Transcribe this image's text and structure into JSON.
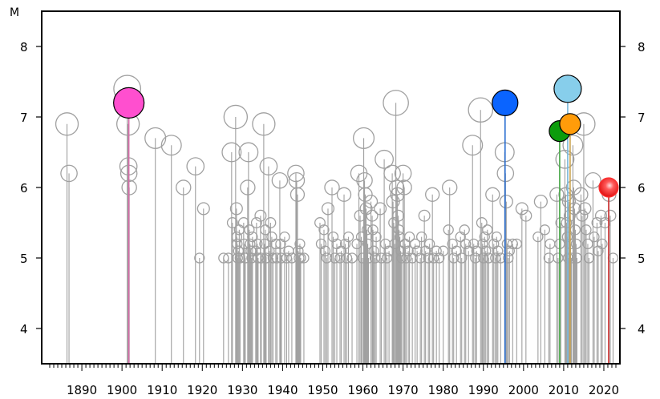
{
  "chart_data": {
    "type": "scatter",
    "title": "",
    "ylabel": "M",
    "xlabel": "",
    "xlim": [
      1880,
      2024
    ],
    "ylim": [
      3.5,
      8.5
    ],
    "xticks": [
      "1890",
      "1900",
      "1910",
      "1920",
      "1930",
      "1940",
      "1950",
      "1960",
      "1970",
      "1980",
      "1990",
      "2000",
      "2010",
      "2020"
    ],
    "yticks": [
      "4",
      "5",
      "6",
      "7",
      "8"
    ],
    "grid": false,
    "background_events": {
      "color": "#a0a0a0",
      "points": [
        [
          1886.3,
          6.9
        ],
        [
          1886.8,
          6.2
        ],
        [
          1901.3,
          7.4
        ],
        [
          1901.5,
          6.9
        ],
        [
          1901.6,
          6.3
        ],
        [
          1901.7,
          6.2
        ],
        [
          1901.8,
          6.0
        ],
        [
          1908.3,
          6.7
        ],
        [
          1912.3,
          6.6
        ],
        [
          1915.3,
          6.0
        ],
        [
          1918.3,
          6.3
        ],
        [
          1919.3,
          5.0
        ],
        [
          1920.3,
          5.7
        ],
        [
          1925.3,
          5.0
        ],
        [
          1926.5,
          5.0
        ],
        [
          1927.3,
          6.5
        ],
        [
          1927.5,
          5.5
        ],
        [
          1928.3,
          7.0
        ],
        [
          1928.5,
          5.7
        ],
        [
          1928.6,
          5.3
        ],
        [
          1928.7,
          5.2
        ],
        [
          1928.8,
          5.0
        ],
        [
          1929.0,
          5.1
        ],
        [
          1929.2,
          5.4
        ],
        [
          1929.4,
          5.0
        ],
        [
          1930.3,
          5.5
        ],
        [
          1930.5,
          5.2
        ],
        [
          1930.7,
          5.0
        ],
        [
          1931.3,
          6.0
        ],
        [
          1931.5,
          6.5
        ],
        [
          1931.7,
          5.4
        ],
        [
          1931.9,
          5.2
        ],
        [
          1932.1,
          5.1
        ],
        [
          1932.3,
          5.0
        ],
        [
          1932.5,
          5.3
        ],
        [
          1933.3,
          5.1
        ],
        [
          1933.5,
          5.5
        ],
        [
          1933.7,
          5.2
        ],
        [
          1933.9,
          5.0
        ],
        [
          1934.5,
          5.6
        ],
        [
          1934.7,
          5.0
        ],
        [
          1935.3,
          6.9
        ],
        [
          1935.5,
          5.2
        ],
        [
          1935.7,
          5.4
        ],
        [
          1935.9,
          5.0
        ],
        [
          1936.5,
          6.3
        ],
        [
          1936.7,
          5.1
        ],
        [
          1937.0,
          5.5
        ],
        [
          1937.3,
          5.3
        ],
        [
          1937.6,
          5.0
        ],
        [
          1938.3,
          5.2
        ],
        [
          1938.6,
          5.0
        ],
        [
          1939.3,
          6.1
        ],
        [
          1939.5,
          5.2
        ],
        [
          1939.7,
          5.0
        ],
        [
          1940.5,
          5.3
        ],
        [
          1941.0,
          5.0
        ],
        [
          1941.5,
          5.1
        ],
        [
          1942.3,
          5.0
        ],
        [
          1943.3,
          6.2
        ],
        [
          1943.5,
          6.1
        ],
        [
          1943.7,
          5.9
        ],
        [
          1943.9,
          5.1
        ],
        [
          1944.1,
          5.0
        ],
        [
          1944.3,
          5.2
        ],
        [
          1944.5,
          5.0
        ],
        [
          1945.3,
          5.0
        ],
        [
          1949.3,
          5.5
        ],
        [
          1949.6,
          5.2
        ],
        [
          1950.3,
          5.4
        ],
        [
          1950.6,
          5.1
        ],
        [
          1951.0,
          5.0
        ],
        [
          1951.3,
          5.7
        ],
        [
          1952.3,
          6.0
        ],
        [
          1952.6,
          5.3
        ],
        [
          1953.0,
          5.0
        ],
        [
          1953.5,
          5.2
        ],
        [
          1954.3,
          5.0
        ],
        [
          1954.6,
          5.1
        ],
        [
          1955.3,
          5.9
        ],
        [
          1955.6,
          5.2
        ],
        [
          1956.0,
          5.0
        ],
        [
          1956.4,
          5.3
        ],
        [
          1957.3,
          5.0
        ],
        [
          1958.5,
          5.2
        ],
        [
          1959.0,
          6.2
        ],
        [
          1959.3,
          5.6
        ],
        [
          1959.6,
          5.3
        ],
        [
          1959.9,
          5.0
        ],
        [
          1960.2,
          6.7
        ],
        [
          1960.4,
          6.1
        ],
        [
          1960.6,
          5.9
        ],
        [
          1960.8,
          5.7
        ],
        [
          1961.0,
          5.4
        ],
        [
          1961.2,
          5.2
        ],
        [
          1961.4,
          5.0
        ],
        [
          1962.0,
          5.8
        ],
        [
          1962.3,
          5.6
        ],
        [
          1962.5,
          5.4
        ],
        [
          1962.7,
          5.1
        ],
        [
          1963.0,
          5.0
        ],
        [
          1963.3,
          5.3
        ],
        [
          1964.3,
          5.7
        ],
        [
          1964.6,
          5.0
        ],
        [
          1965.3,
          6.4
        ],
        [
          1965.6,
          5.2
        ],
        [
          1966.0,
          5.0
        ],
        [
          1966.5,
          5.1
        ],
        [
          1967.3,
          6.2
        ],
        [
          1967.5,
          5.8
        ],
        [
          1967.7,
          5.5
        ],
        [
          1967.9,
          5.2
        ],
        [
          1968.2,
          7.2
        ],
        [
          1968.4,
          6.0
        ],
        [
          1968.6,
          5.9
        ],
        [
          1968.8,
          5.6
        ],
        [
          1969.0,
          5.4
        ],
        [
          1969.2,
          5.3
        ],
        [
          1969.4,
          5.1
        ],
        [
          1969.6,
          5.0
        ],
        [
          1970.0,
          6.2
        ],
        [
          1970.3,
          6.0
        ],
        [
          1970.5,
          5.2
        ],
        [
          1970.8,
          5.0
        ],
        [
          1971.3,
          5.1
        ],
        [
          1971.6,
          5.3
        ],
        [
          1972.3,
          5.0
        ],
        [
          1973.0,
          5.2
        ],
        [
          1973.5,
          5.1
        ],
        [
          1974.3,
          5.0
        ],
        [
          1974.6,
          5.3
        ],
        [
          1975.3,
          5.6
        ],
        [
          1975.6,
          5.1
        ],
        [
          1976.3,
          5.0
        ],
        [
          1976.6,
          5.2
        ],
        [
          1977.3,
          5.9
        ],
        [
          1977.6,
          5.0
        ],
        [
          1978.3,
          5.1
        ],
        [
          1979.0,
          5.0
        ],
        [
          1980.0,
          5.1
        ],
        [
          1981.3,
          5.4
        ],
        [
          1981.6,
          6.0
        ],
        [
          1982.3,
          5.2
        ],
        [
          1982.6,
          5.0
        ],
        [
          1983.3,
          5.1
        ],
        [
          1984.3,
          5.3
        ],
        [
          1984.6,
          5.0
        ],
        [
          1985.3,
          5.4
        ],
        [
          1985.6,
          5.2
        ],
        [
          1986.3,
          5.1
        ],
        [
          1987.3,
          6.6
        ],
        [
          1987.6,
          5.2
        ],
        [
          1988.0,
          5.0
        ],
        [
          1988.3,
          5.1
        ],
        [
          1989.3,
          7.1
        ],
        [
          1989.6,
          5.5
        ],
        [
          1989.8,
          5.2
        ],
        [
          1990.0,
          5.0
        ],
        [
          1990.3,
          5.3
        ],
        [
          1990.6,
          5.1
        ],
        [
          1991.0,
          5.4
        ],
        [
          1991.3,
          5.0
        ],
        [
          1992.3,
          5.9
        ],
        [
          1992.6,
          5.2
        ],
        [
          1993.0,
          5.0
        ],
        [
          1993.3,
          5.3
        ],
        [
          1993.6,
          5.1
        ],
        [
          1994.3,
          5.0
        ],
        [
          1995.3,
          6.5
        ],
        [
          1995.5,
          6.2
        ],
        [
          1995.7,
          5.8
        ],
        [
          1995.9,
          5.2
        ],
        [
          1996.2,
          5.0
        ],
        [
          1996.5,
          5.1
        ],
        [
          1997.3,
          5.2
        ],
        [
          1998.3,
          5.2
        ],
        [
          1999.6,
          5.7
        ],
        [
          2000.6,
          5.6
        ],
        [
          2003.6,
          5.3
        ],
        [
          2004.3,
          5.8
        ],
        [
          2005.3,
          5.4
        ],
        [
          2006.3,
          5.0
        ],
        [
          2006.6,
          5.2
        ],
        [
          2008.3,
          5.9
        ],
        [
          2008.6,
          5.0
        ],
        [
          2009.0,
          5.2
        ],
        [
          2009.3,
          5.5
        ],
        [
          2010.3,
          6.4
        ],
        [
          2010.5,
          5.9
        ],
        [
          2010.7,
          5.5
        ],
        [
          2010.9,
          5.3
        ],
        [
          2011.1,
          5.0
        ],
        [
          2011.3,
          5.8
        ],
        [
          2011.5,
          5.6
        ],
        [
          2011.7,
          5.2
        ],
        [
          2011.9,
          5.0
        ],
        [
          2012.3,
          6.6
        ],
        [
          2012.5,
          6.0
        ],
        [
          2012.7,
          5.7
        ],
        [
          2012.9,
          5.4
        ],
        [
          2013.1,
          5.2
        ],
        [
          2013.3,
          5.0
        ],
        [
          2014.3,
          5.9
        ],
        [
          2014.6,
          5.6
        ],
        [
          2015.0,
          6.9
        ],
        [
          2015.3,
          5.7
        ],
        [
          2015.6,
          5.4
        ],
        [
          2016.0,
          5.2
        ],
        [
          2016.3,
          5.0
        ],
        [
          2017.3,
          6.1
        ],
        [
          2017.6,
          5.3
        ],
        [
          2018.3,
          5.5
        ],
        [
          2018.6,
          5.1
        ],
        [
          2019.3,
          5.6
        ],
        [
          2019.6,
          5.2
        ],
        [
          2020.3,
          5.5
        ],
        [
          2021.3,
          5.9
        ],
        [
          2021.6,
          5.6
        ],
        [
          2022.3,
          5.0
        ]
      ]
    },
    "highlighted_events": [
      {
        "x": 1901.7,
        "y": 7.2,
        "color": "#ff4fcf",
        "stem_color": "#d66aa8",
        "size": 19
      },
      {
        "x": 1995.4,
        "y": 7.2,
        "color": "#0a64ff",
        "stem_color": "#2a6ed0",
        "size": 16
      },
      {
        "x": 2009.0,
        "y": 6.8,
        "color": "#0c9c0c",
        "stem_color": "#4aa84a",
        "size": 13
      },
      {
        "x": 2011.0,
        "y": 7.4,
        "color": "#87ceeb",
        "stem_color": "#7ab8d8",
        "size": 17
      },
      {
        "x": 2011.6,
        "y": 6.9,
        "color": "#ff9c0a",
        "stem_color": "#c9a24a",
        "size": 13
      },
      {
        "x": 2021.2,
        "y": 6.0,
        "color": "#ff2020",
        "stem_color": "#d03030",
        "size": 12
      }
    ]
  }
}
